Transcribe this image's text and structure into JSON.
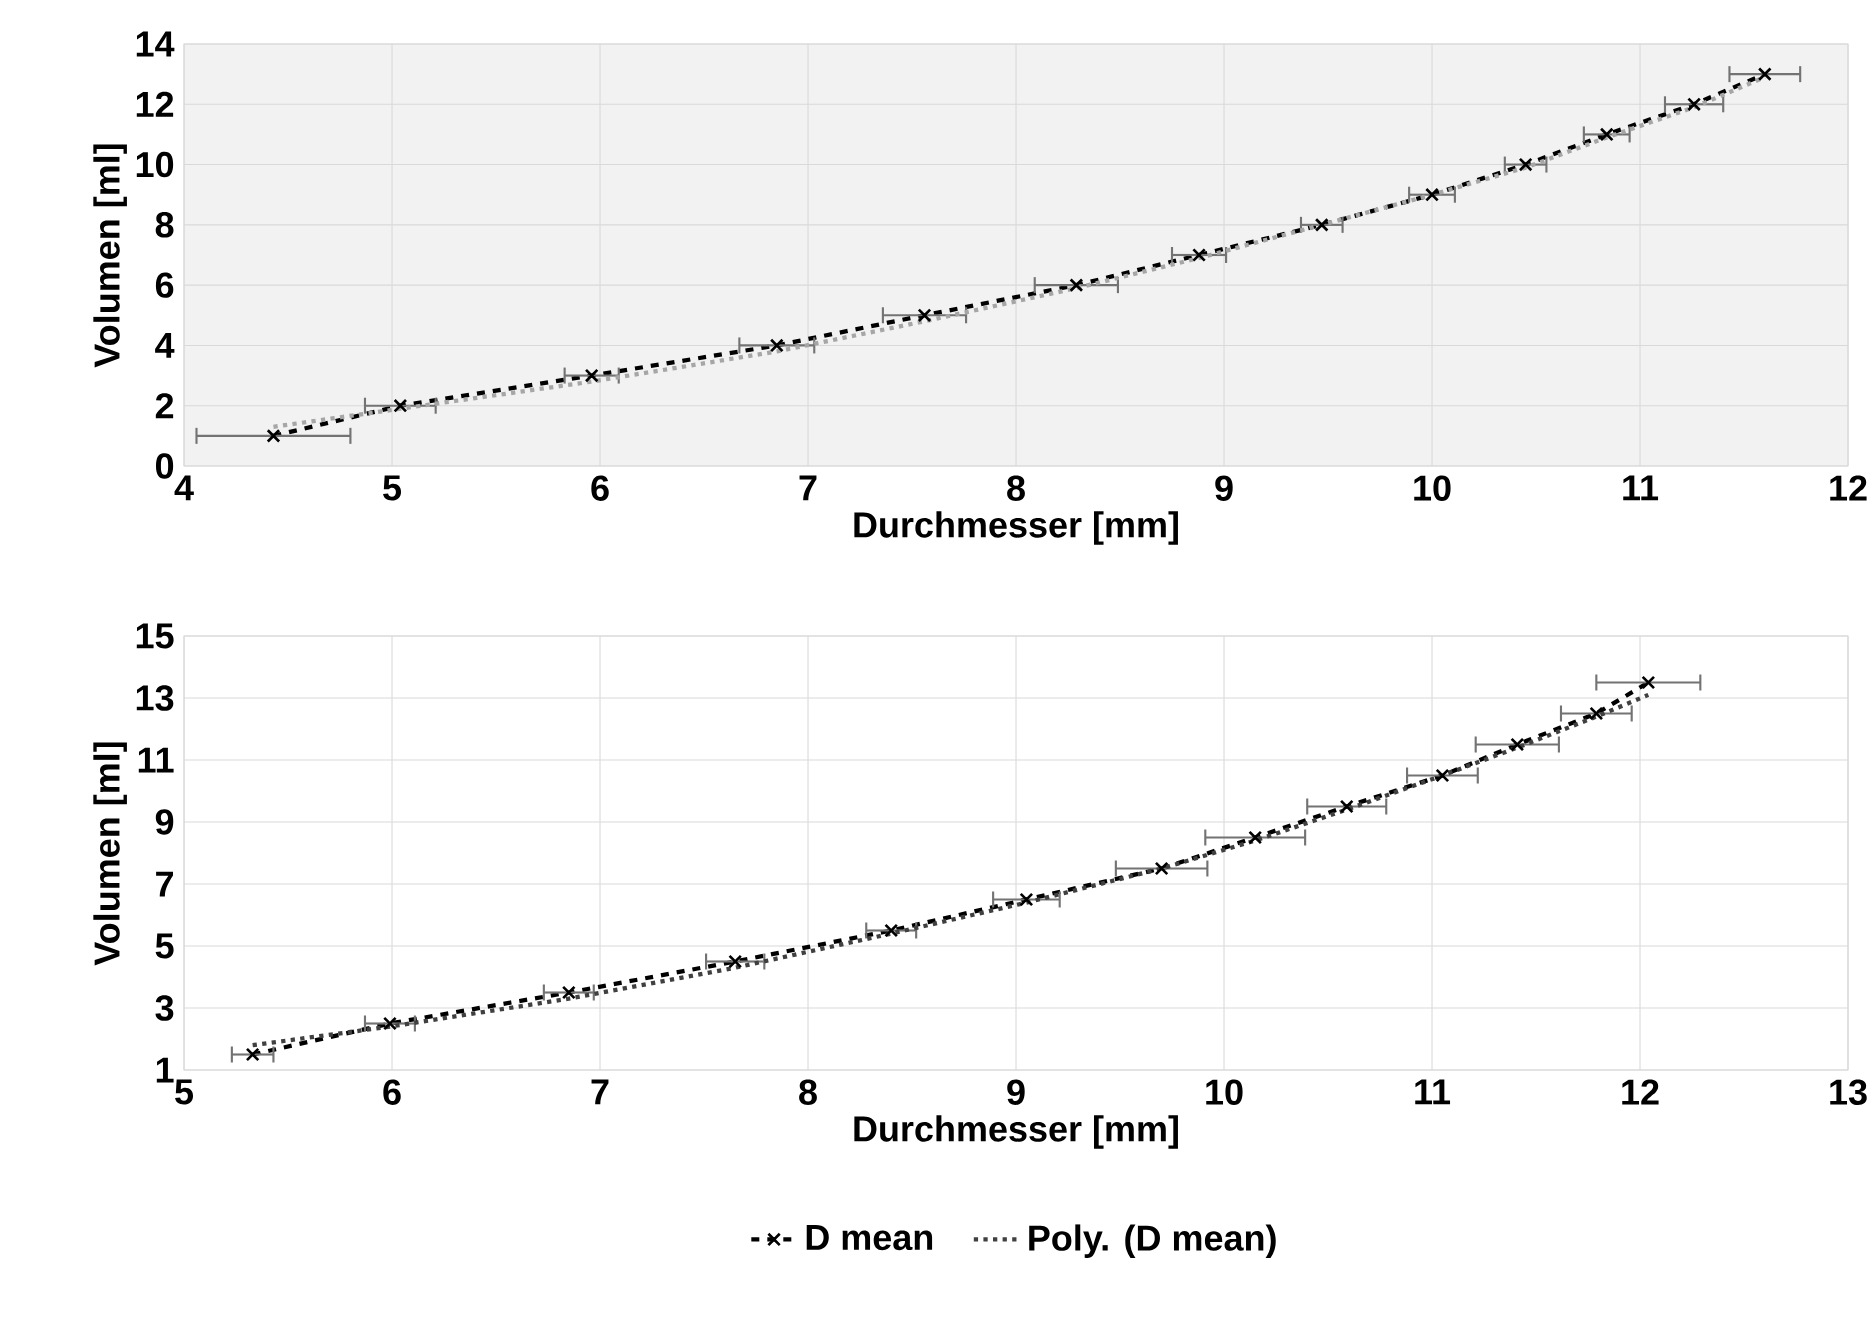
{
  "chart_data": [
    {
      "type": "line",
      "xlabel": "Durchmesser [mm]",
      "ylabel": "Volumen [ml]",
      "xlim": [
        4,
        12
      ],
      "ylim": [
        0,
        14
      ],
      "xticks": [
        4,
        5,
        6,
        7,
        8,
        9,
        10,
        11,
        12
      ],
      "yticks": [
        0,
        2,
        4,
        6,
        8,
        10,
        12,
        14
      ],
      "grid": true,
      "series": [
        {
          "color": "#000000",
          "line_style": "dashed",
          "marker": "cross",
          "x": [
            4.43,
            5.04,
            5.96,
            6.85,
            7.56,
            8.29,
            8.88,
            9.47,
            10.0,
            10.45,
            10.84,
            11.26,
            11.6
          ],
          "values": [
            1,
            2,
            3,
            4,
            5,
            6,
            7,
            8,
            9,
            10,
            11,
            12,
            13
          ],
          "xerrors": [
            0.37,
            0.17,
            0.13,
            0.18,
            0.2,
            0.2,
            0.13,
            0.1,
            0.11,
            0.1,
            0.11,
            0.14,
            0.17
          ]
        },
        {
          "color": "#a6a6a6",
          "line_style": "dotted",
          "marker": "none",
          "x": [
            4.43,
            5.04,
            5.96,
            6.85,
            7.56,
            8.29,
            8.88,
            9.47,
            10.0,
            10.45,
            10.84,
            11.26,
            11.6
          ],
          "values": [
            1.3,
            1.9,
            2.8,
            3.8,
            4.8,
            5.9,
            6.9,
            8.0,
            9.0,
            9.9,
            10.9,
            11.9,
            12.9
          ]
        }
      ]
    },
    {
      "type": "line",
      "xlabel": "Durchmesser [mm]",
      "ylabel": "Volumen [ml]",
      "xlim": [
        5,
        13
      ],
      "ylim": [
        1,
        15
      ],
      "xticks": [
        5,
        6,
        7,
        8,
        9,
        10,
        11,
        12,
        13
      ],
      "yticks": [
        1,
        3,
        5,
        7,
        9,
        11,
        13,
        15
      ],
      "grid": true,
      "legend": "bottom",
      "series": [
        {
          "name": "D mean",
          "color": "#000000",
          "line_style": "dashed",
          "marker": "cross",
          "x": [
            5.33,
            5.99,
            6.85,
            7.65,
            8.4,
            9.05,
            9.7,
            10.15,
            10.59,
            11.05,
            11.41,
            11.79,
            12.04
          ],
          "values": [
            1.5,
            2.5,
            3.5,
            4.5,
            5.5,
            6.5,
            7.5,
            8.5,
            9.5,
            10.5,
            11.5,
            12.5,
            13.5
          ],
          "xerrors": [
            0.1,
            0.12,
            0.12,
            0.14,
            0.12,
            0.16,
            0.22,
            0.24,
            0.19,
            0.17,
            0.2,
            0.17,
            0.25
          ]
        },
        {
          "name": "Poly. (D mean)",
          "color": "#404040",
          "line_style": "dotted",
          "marker": "none",
          "x": [
            5.33,
            5.99,
            6.85,
            7.65,
            8.4,
            9.05,
            9.7,
            10.15,
            10.59,
            11.05,
            11.41,
            11.79,
            12.04
          ],
          "values": [
            1.8,
            2.4,
            3.3,
            4.3,
            5.4,
            6.4,
            7.5,
            8.4,
            9.4,
            10.5,
            11.4,
            12.4,
            13.1
          ]
        }
      ]
    }
  ]
}
